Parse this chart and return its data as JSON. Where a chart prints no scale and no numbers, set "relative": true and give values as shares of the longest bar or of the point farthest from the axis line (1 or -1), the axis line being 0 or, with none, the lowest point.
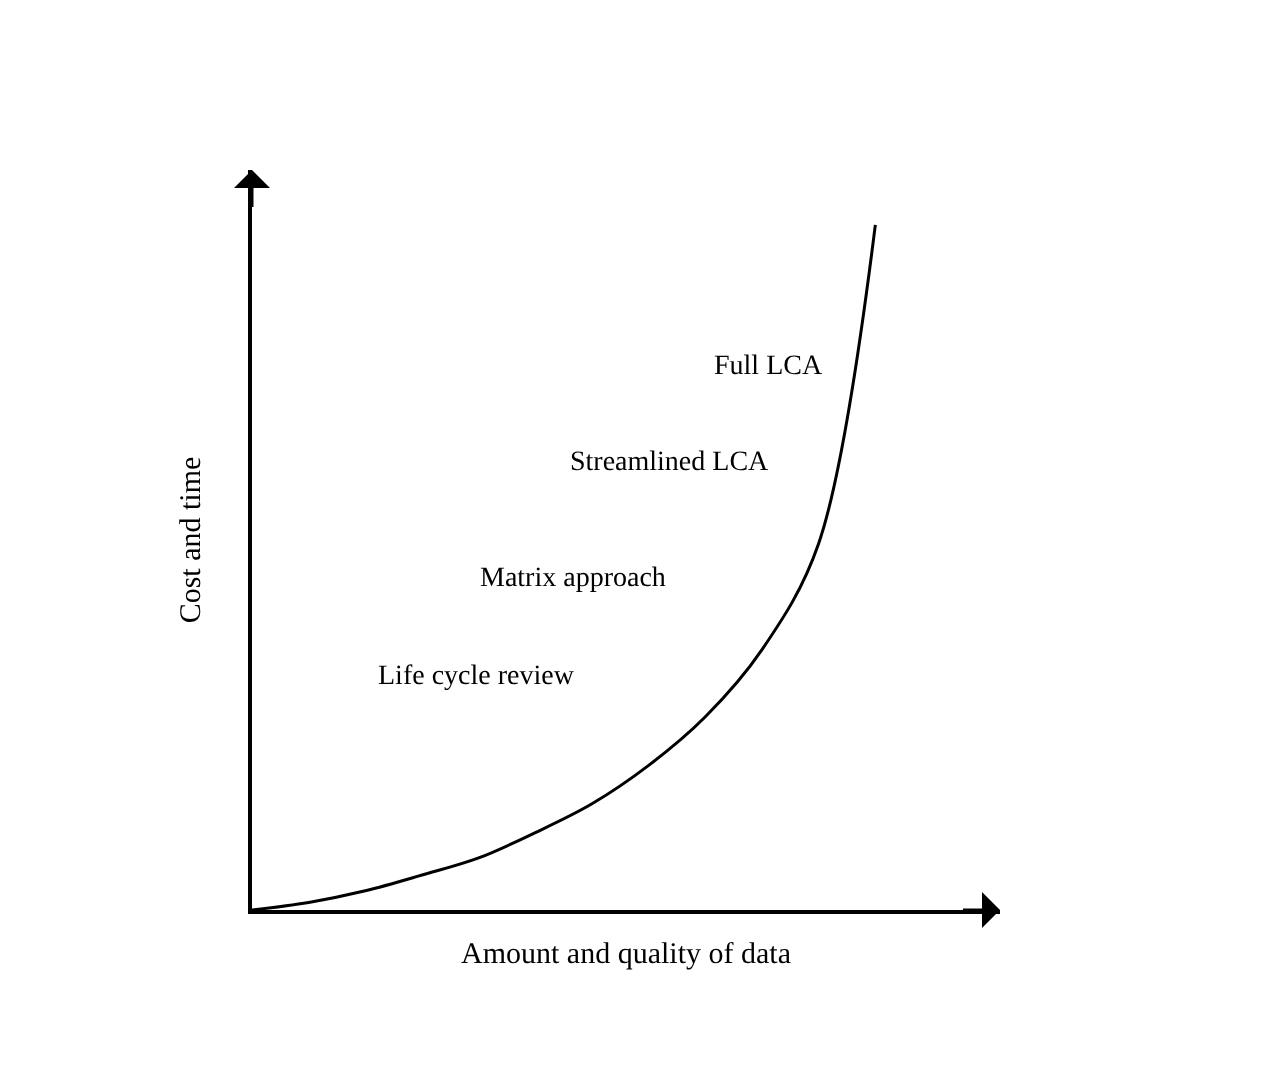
{
  "chart_data": {
    "type": "line",
    "relative": true,
    "categories": [
      null,
      null,
      null,
      null,
      null,
      null,
      null,
      null,
      null,
      null,
      null,
      null
    ],
    "series": [
      {
        "color": "#000000",
        "values": [
          0,
          0.011,
          0.028,
          0.051,
          0.076,
          0.113,
          0.155,
          0.211,
          0.282,
          0.38,
          0.535,
          1
        ]
      }
    ],
    "xlabel": "Amount and quality of data",
    "ylabel": "Cost and time",
    "annotations": [
      "Full LCA",
      "Streamlined LCA",
      "Matrix approach",
      "Life cycle review"
    ],
    "marker": "none",
    "line_style": "solid",
    "legend": false
  }
}
